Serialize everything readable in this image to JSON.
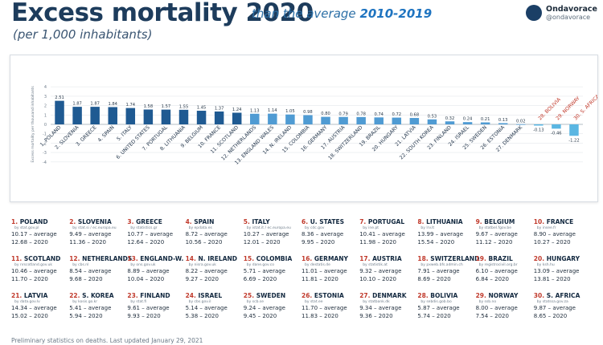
{
  "header": {
    "title": "Excess mortality 2020",
    "title_rest": "than the average",
    "title_period": "2010-2019",
    "subtitle": "(per 1,000 inhabitants)"
  },
  "brand": {
    "name": "Ondavorace",
    "handle": "@ondavorace"
  },
  "chart_data": {
    "type": "bar",
    "ylabel": "Excess mortality per thousand inhabitants",
    "ylim": [
      -4,
      4
    ],
    "yticks": [
      -4,
      -3,
      -2,
      -1,
      0,
      1,
      2,
      3,
      4
    ],
    "grid": true,
    "colors": {
      "positive_dark": "#1f5a92",
      "positive_light": "#4f9bd3",
      "negative": "#5ab6e2",
      "label_red": "#c0392b"
    },
    "categories": [
      "1. POLAND",
      "2. SLOVENIA",
      "3. GREECE",
      "4. SPAIN",
      "5. ITALY",
      "6. UNITED STATES",
      "7. PORTUGAL",
      "8. LITHUANIA",
      "9. BELGIUM",
      "10. FRANCE",
      "11. SCOTLAND",
      "12. NETHERLANDS",
      "13. ENGLAND WALES",
      "14. N. IRELAND",
      "15. COLOMBIA",
      "16. GERMANY",
      "17. AUSTRIA",
      "18. SWITZERLAND",
      "19. BRAZIL",
      "20. HUNGARY",
      "21. LATVIA",
      "22. SOUTH KOREA",
      "23. FINLAND",
      "24. ISRAEL",
      "25. SWEDEN",
      "26. ESTONIA",
      "27. DENMARK",
      "28. BOLIVIA",
      "29. NORWAY",
      "30. S. AFRICA"
    ],
    "values": [
      2.51,
      1.87,
      1.87,
      1.84,
      1.74,
      1.58,
      1.57,
      1.55,
      1.45,
      1.37,
      1.24,
      1.13,
      1.14,
      1.05,
      0.98,
      0.8,
      0.79,
      0.78,
      0.74,
      0.72,
      0.68,
      0.53,
      0.32,
      0.24,
      0.21,
      0.13,
      0.02,
      -0.13,
      -0.46,
      -1.22
    ],
    "data_labels": [
      "2.51",
      "1.87",
      "1.87",
      "1.84",
      "1.74",
      "1.58",
      "1.57",
      "1.55",
      "1.45",
      "1.37",
      "1.24",
      "1.13",
      "1.14",
      "1.05",
      "0.98",
      "0.80",
      "0.79",
      "0.78",
      "0.74",
      "0.72",
      "0.68",
      "0.53",
      "0.32",
      "0.24",
      "0.21",
      "0.13",
      "0.02",
      "-0.13",
      "-0.46",
      "-1.22"
    ]
  },
  "countries": [
    {
      "num": "1.",
      "name": "POLAND",
      "source": "by stat.gov.pl",
      "avg": "10.17 – average",
      "y2020": "12.68 – 2020"
    },
    {
      "num": "2.",
      "name": "SLOVENIA",
      "source": "by stat.si / ec.europa.eu",
      "avg": "9.49 – average",
      "y2020": "11.36 – 2020"
    },
    {
      "num": "3.",
      "name": "GREECE",
      "source": "by statistics.gr",
      "avg": "10.77 – average",
      "y2020": "12.64 – 2020"
    },
    {
      "num": "4.",
      "name": "SPAIN",
      "source": "by epdata.es",
      "avg": "8.72 – average",
      "y2020": "10.56 – 2020"
    },
    {
      "num": "5.",
      "name": "ITALY",
      "source": "by istat.it / ec.europa.eu",
      "avg": "10.27 – average",
      "y2020": "12.01 – 2020"
    },
    {
      "num": "6.",
      "name": "U. STATES",
      "source": "by cdc.gov",
      "avg": "8.36 – average",
      "y2020": "9.95 – 2020"
    },
    {
      "num": "7.",
      "name": "PORTUGAL",
      "source": "by ine.pt",
      "avg": "10.41 – average",
      "y2020": "11.98 – 2020"
    },
    {
      "num": "8.",
      "name": "LITHUANIA",
      "source": "by lrv.lt",
      "avg": "13.99 – average",
      "y2020": "15.54 – 2020"
    },
    {
      "num": "9.",
      "name": "BELGIUM",
      "source": "by statbel.fgov.be",
      "avg": "9.67 – average",
      "y2020": "11.12 – 2020"
    },
    {
      "num": "10.",
      "name": "FRANCE",
      "source": "by insee.fr",
      "avg": "8.90 – average",
      "y2020": "10.27 – 2020"
    },
    {
      "num": "11.",
      "name": "SCOTLAND",
      "source": "by nrscotland.gov.uk",
      "avg": "10.46 – average",
      "y2020": "11.70 – 2020"
    },
    {
      "num": "12.",
      "name": "NETHERLANDS",
      "source": "by cbs.nl",
      "avg": "8.54 – average",
      "y2020": "9.68 – 2020"
    },
    {
      "num": "13.",
      "name": "ENGLAND-W.",
      "source": "by ons.gov.uk",
      "avg": "8.89 – average",
      "y2020": "10.04 – 2020"
    },
    {
      "num": "14.",
      "name": "N. IRELAND",
      "source": "by nisra.gov.uk",
      "avg": "8.22 – average",
      "y2020": "9.27 – 2020"
    },
    {
      "num": "15.",
      "name": "COLOMBIA",
      "source": "by dane.gov.co",
      "avg": "5.71 – average",
      "y2020": "6.69 – 2020"
    },
    {
      "num": "16.",
      "name": "GERMANY",
      "source": "by destatis.de",
      "avg": "11.01 – average",
      "y2020": "11.81 – 2020"
    },
    {
      "num": "17.",
      "name": "AUSTRIA",
      "source": "by statistik.at",
      "avg": "9.32 – average",
      "y2020": "10.10 – 2020"
    },
    {
      "num": "18.",
      "name": "SWITZERLAND",
      "source": "by pxweb.bfs.admin.ch",
      "avg": "7.91 – average",
      "y2020": "8.69 – 2020"
    },
    {
      "num": "19.",
      "name": "BRAZIL",
      "source": "by registrocivil.org.br",
      "avg": "6.10 – average",
      "y2020": "6.84 – 2020"
    },
    {
      "num": "20.",
      "name": "HUNGARY",
      "source": "by ksh.hu",
      "avg": "13.09 – average",
      "y2020": "13.81 – 2020"
    },
    {
      "num": "21.",
      "name": "LATVIA",
      "source": "by data.gov.lv",
      "avg": "14.34 – average",
      "y2020": "15.02 – 2020"
    },
    {
      "num": "22.",
      "name": "S. KOREA",
      "source": "by kosis.go.kr",
      "avg": "5.41 – average",
      "y2020": "5.94 – 2020"
    },
    {
      "num": "23.",
      "name": "FINLAND",
      "source": "by stat.fi",
      "avg": "9.61 – average",
      "y2020": "9.93 – 2020"
    },
    {
      "num": "24.",
      "name": "ISRAEL",
      "source": "by cbs.gov.il",
      "avg": "5.14 – average",
      "y2020": "5.38 – 2020"
    },
    {
      "num": "25.",
      "name": "SWEDEN",
      "source": "by scb.se",
      "avg": "9.24 – average",
      "y2020": "9.45 – 2020"
    },
    {
      "num": "26.",
      "name": "ESTONIA",
      "source": "by stat.ee",
      "avg": "11.70 – average",
      "y2020": "11.83 – 2020"
    },
    {
      "num": "27.",
      "name": "DENMARK",
      "source": "by statbank.dk",
      "avg": "9.34 – average",
      "y2020": "9.36 – 2020"
    },
    {
      "num": "28.",
      "name": "BOLIVIA",
      "source": "by sebdis.gob.bo",
      "avg": "5.87 – average",
      "y2020": "5.74 – 2020"
    },
    {
      "num": "29.",
      "name": "NORWAY",
      "source": "by ssb.no",
      "avg": "8.00 – average",
      "y2020": "7.54 – 2020"
    },
    {
      "num": "30.",
      "name": "S. AFRICA",
      "source": "by statssa.gov.za",
      "avg": "9.87 – average",
      "y2020": "8.65 – 2020"
    }
  ],
  "footer": "Preliminary statistics on deaths. Last updated January 29, 2021"
}
